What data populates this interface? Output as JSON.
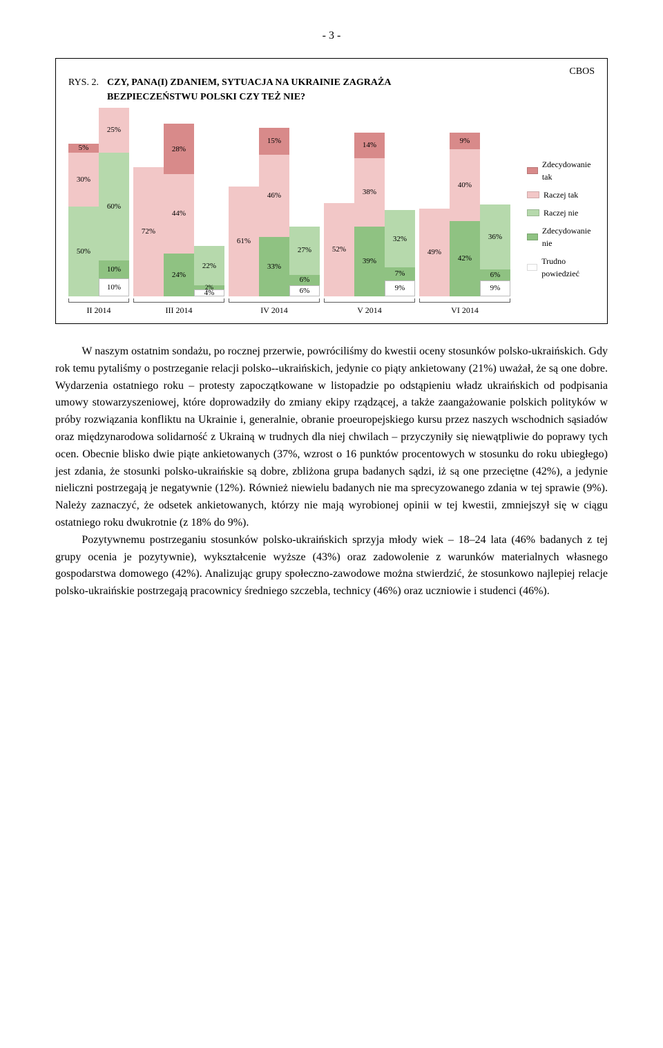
{
  "pageNumber": "- 3 -",
  "cbos": "CBOS",
  "chart": {
    "rys": "RYS. 2.",
    "question": "CZY, PANA(I) ZDANIEM, SYTUACJA NA UKRAINIE ZAGRAŻA BEZPIECZEŃSTWU POLSKI CZY TEŻ NIE?",
    "legend": [
      {
        "label": "Zdecydowanie tak",
        "color": "#d88a8a"
      },
      {
        "label": "Raczej tak",
        "color": "#f2c7c7"
      },
      {
        "label": "Raczej nie",
        "color": "#b6d9ac"
      },
      {
        "label": "Zdecydowanie nie",
        "color": "#8fc282"
      },
      {
        "label": "Trudno powiedzieć",
        "color": "#ffffff"
      }
    ],
    "seriesOrder": [
      "zt",
      "rt",
      "rn",
      "zn",
      "tp"
    ],
    "colors": {
      "zt": "#d88a8a",
      "rt": "#f2c7c7",
      "rn": "#b6d9ac",
      "zn": "#8fc282",
      "tp": "#ffffff"
    },
    "groups": [
      {
        "label": "II 2014",
        "cols": [
          {
            "zt": 5,
            "rt": 30,
            "rn": 50,
            "zn": 0,
            "tp": 0,
            "hide": [
              "zn",
              "tp"
            ]
          },
          {
            "zt": 0,
            "rt": 25,
            "rn": 60,
            "zn": 10,
            "tp": 10,
            "hide": [
              "zt"
            ],
            "labelOverride": {
              "zn": "10%",
              "tp": "10%"
            }
          }
        ]
      },
      {
        "label": "III 2014",
        "cols": [
          {
            "zt": 0,
            "rt": 72,
            "rn": 0,
            "zn": 0,
            "tp": 0,
            "hide": [
              "zt",
              "rn",
              "zn",
              "tp"
            ]
          },
          {
            "zt": 28,
            "rt": 44,
            "rn": 0,
            "zn": 24,
            "tp": 0,
            "hide": [
              "rn",
              "tp"
            ]
          },
          {
            "zt": 0,
            "rt": 0,
            "rn": 22,
            "zn": 2,
            "tp": 4,
            "hide": [
              "zt",
              "rt"
            ]
          }
        ]
      },
      {
        "label": "IV 2014",
        "cols": [
          {
            "zt": 0,
            "rt": 61,
            "rn": 0,
            "zn": 0,
            "tp": 0,
            "hide": [
              "zt",
              "rn",
              "zn",
              "tp"
            ]
          },
          {
            "zt": 15,
            "rt": 46,
            "rn": 0,
            "zn": 33,
            "tp": 0,
            "hide": [
              "rn",
              "tp"
            ]
          },
          {
            "zt": 0,
            "rt": 0,
            "rn": 27,
            "zn": 6,
            "tp": 6,
            "hide": [
              "zt",
              "rt"
            ]
          }
        ]
      },
      {
        "label": "V 2014",
        "cols": [
          {
            "zt": 0,
            "rt": 52,
            "rn": 0,
            "zn": 0,
            "tp": 0,
            "hide": [
              "zt",
              "rn",
              "zn",
              "tp"
            ]
          },
          {
            "zt": 14,
            "rt": 38,
            "rn": 0,
            "zn": 39,
            "tp": 0,
            "hide": [
              "rn",
              "tp"
            ]
          },
          {
            "zt": 0,
            "rt": 0,
            "rn": 32,
            "zn": 7,
            "tp": 9,
            "hide": [
              "zt",
              "rt"
            ]
          }
        ]
      },
      {
        "label": "VI 2014",
        "cols": [
          {
            "zt": 0,
            "rt": 49,
            "rn": 0,
            "zn": 0,
            "tp": 0,
            "hide": [
              "zt",
              "rn",
              "zn",
              "tp"
            ]
          },
          {
            "zt": 9,
            "rt": 40,
            "rn": 0,
            "zn": 42,
            "tp": 0,
            "hide": [
              "rn",
              "tp"
            ]
          },
          {
            "zt": 0,
            "rt": 0,
            "rn": 36,
            "zn": 6,
            "tp": 9,
            "hide": [
              "zt",
              "rt"
            ]
          }
        ]
      }
    ],
    "barHeightPx": 260,
    "colWidthPx": 44
  },
  "paragraphs": [
    "W naszym ostatnim sondażu, po rocznej przerwie, powróciliśmy do kwestii oceny stosunków polsko-ukraińskich. Gdy rok temu pytaliśmy o postrzeganie relacji polsko--ukraińskich, jedynie co piąty ankietowany (21%) uważał, że są one dobre. Wydarzenia ostatniego roku – protesty zapoczątkowane w listopadzie po odstąpieniu władz ukraińskich od podpisania umowy stowarzyszeniowej, które doprowadziły do zmiany ekipy rządzącej, a także zaangażowanie polskich polityków w próby rozwiązania konfliktu na Ukrainie i, generalnie, obranie proeuropejskiego kursu przez naszych wschodnich sąsiadów oraz międzynarodowa solidarność z Ukrainą w trudnych dla niej chwilach – przyczyniły się niewątpliwie do poprawy tych ocen. Obecnie blisko dwie piąte ankietowanych (37%, wzrost o 16 punktów procentowych w stosunku do roku ubiegłego) jest zdania, że stosunki polsko-ukraińskie są dobre, zbliżona grupa badanych sądzi, iż są one przeciętne (42%), a jedynie nieliczni postrzegają je negatywnie (12%). Również niewielu badanych nie ma sprecyzowanego zdania w tej sprawie (9%). Należy zaznaczyć, że odsetek ankietowanych, którzy nie mają wyrobionej opinii w tej kwestii, zmniejszył się w ciągu ostatniego roku dwukrotnie (z 18% do 9%).",
    "Pozytywnemu postrzeganiu stosunków polsko-ukraińskich sprzyja młody wiek – 18–24 lata (46% badanych z tej grupy ocenia je pozytywnie), wykształcenie wyższe (43%) oraz zadowolenie z warunków materialnych własnego gospodarstwa domowego (42%). Analizując grupy społeczno-zawodowe można stwierdzić, że stosunkowo najlepiej relacje polsko-ukraińskie postrzegają pracownicy średniego szczebla, technicy (46%) oraz uczniowie i studenci (46%)."
  ]
}
